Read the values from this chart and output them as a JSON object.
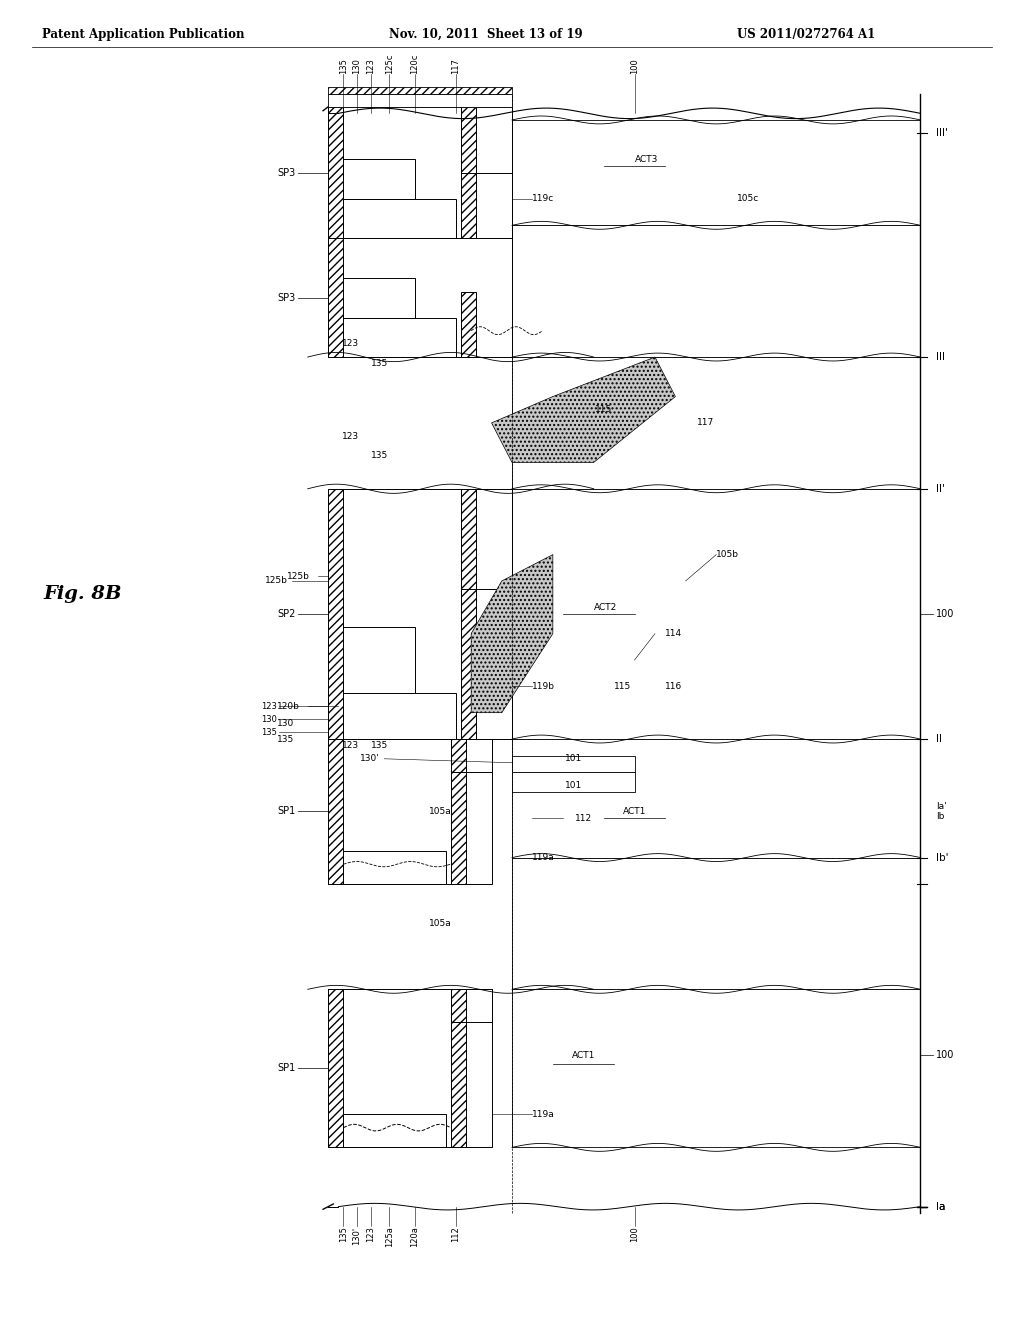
{
  "header_left": "Patent Application Publication",
  "header_center": "Nov. 10, 2011  Sheet 13 of 19",
  "header_right": "US 2011/0272764 A1",
  "fig_label": "Fig. 8B",
  "bg_color": "#ffffff"
}
